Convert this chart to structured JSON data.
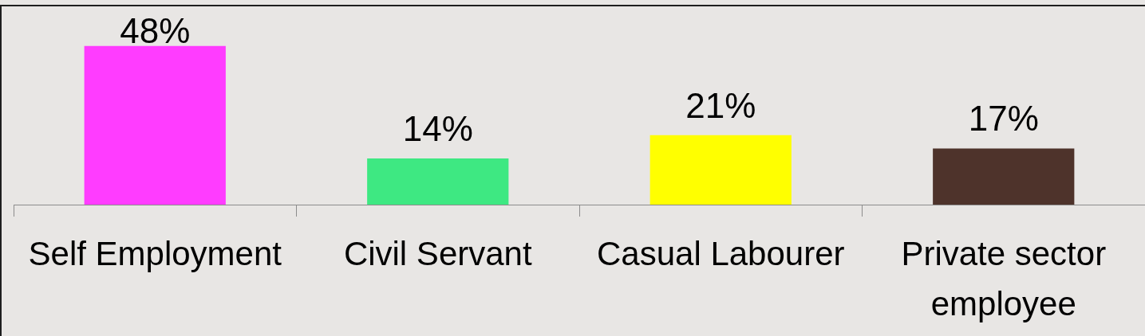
{
  "chart_data": {
    "type": "bar",
    "categories": [
      "Self Employment",
      "Civil Servant",
      "Casual Labourer",
      "Private sector employee"
    ],
    "values": [
      48,
      14,
      21,
      17
    ],
    "colors": [
      "#ff3cff",
      "#3ee882",
      "#ffff00",
      "#4e332b"
    ],
    "value_labels": [
      "48%",
      "14%",
      "21%",
      "17%"
    ],
    "ylim": [
      0,
      60
    ],
    "tick_labels": "x"
  }
}
